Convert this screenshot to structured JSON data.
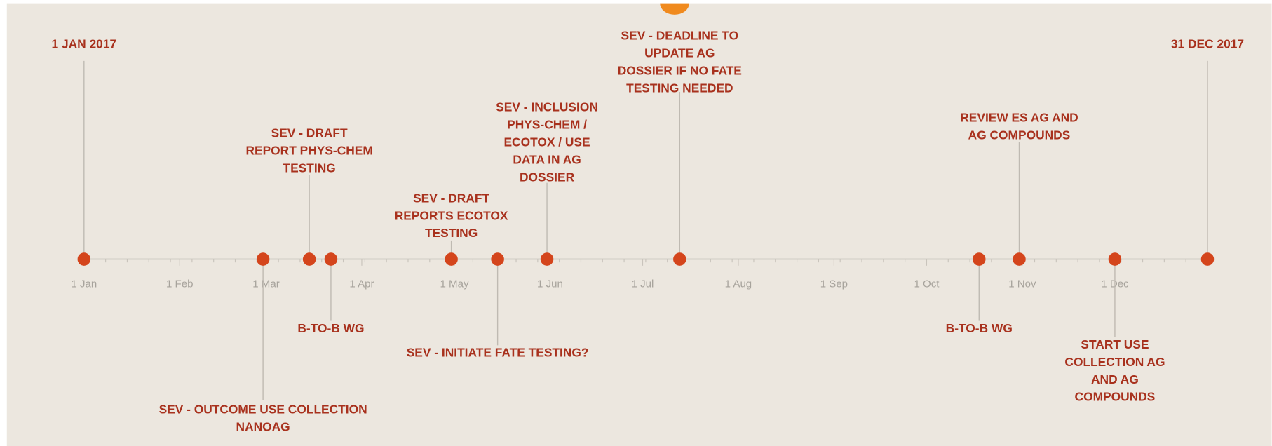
{
  "chart_data": {
    "type": "timeline",
    "xlim": [
      "2017-01-01",
      "2017-12-31"
    ],
    "xticks": [
      {
        "value": "2017-01-01",
        "label": "1 Jan"
      },
      {
        "value": "2017-02-01",
        "label": "1 Feb"
      },
      {
        "value": "2017-03-01",
        "label": "1 Mar"
      },
      {
        "value": "2017-04-01",
        "label": "1 Apr"
      },
      {
        "value": "2017-05-01",
        "label": "1 May"
      },
      {
        "value": "2017-06-01",
        "label": "1 Jun"
      },
      {
        "value": "2017-07-01",
        "label": "1 Jul"
      },
      {
        "value": "2017-08-01",
        "label": "1 Aug"
      },
      {
        "value": "2017-09-01",
        "label": "1 Sep"
      },
      {
        "value": "2017-10-01",
        "label": "1 Oct"
      },
      {
        "value": "2017-11-01",
        "label": "1 Nov"
      },
      {
        "value": "2017-12-01",
        "label": "1 Dec"
      }
    ],
    "color": "#d4451c",
    "events": [
      {
        "date": "2017-01-01",
        "side": "above",
        "label": [
          "1 JAN 2017"
        ]
      },
      {
        "date": "2017-02-28",
        "side": "below",
        "label": [
          "SEV - OUTCOME USE COLLECTION",
          "NANOAG"
        ]
      },
      {
        "date": "2017-03-15",
        "side": "above",
        "label": [
          "SEV - DRAFT",
          "REPORT PHYS-CHEM",
          "TESTING"
        ]
      },
      {
        "date": "2017-03-22",
        "side": "below",
        "label": [
          "B-TO-B WG"
        ]
      },
      {
        "date": "2017-04-30",
        "side": "above",
        "label": [
          "SEV - DRAFT",
          "REPORTS ECOTOX",
          "TESTING"
        ]
      },
      {
        "date": "2017-05-15",
        "side": "below",
        "label": [
          "SEV - INITIATE FATE TESTING?"
        ]
      },
      {
        "date": "2017-05-31",
        "side": "above",
        "label": [
          "SEV - INCLUSION",
          "PHYS-CHEM /",
          "ECOTOX / USE",
          "DATA IN AG",
          "DOSSIER"
        ]
      },
      {
        "date": "2017-07-13",
        "side": "above",
        "label": [
          "SEV - DEADLINE TO",
          "UPDATE AG",
          "DOSSIER IF NO FATE",
          "TESTING NEEDED"
        ]
      },
      {
        "date": "2017-10-18",
        "side": "below",
        "label": [
          "B-TO-B WG"
        ]
      },
      {
        "date": "2017-10-31",
        "side": "above",
        "label": [
          "REVIEW ES AG AND",
          "AG COMPOUNDS"
        ]
      },
      {
        "date": "2017-12-01",
        "side": "below",
        "label": [
          "START USE",
          "COLLECTION AG",
          "AND AG",
          "COMPOUNDS"
        ]
      },
      {
        "date": "2017-12-31",
        "side": "above",
        "label": [
          "31 DEC 2017"
        ]
      }
    ]
  }
}
